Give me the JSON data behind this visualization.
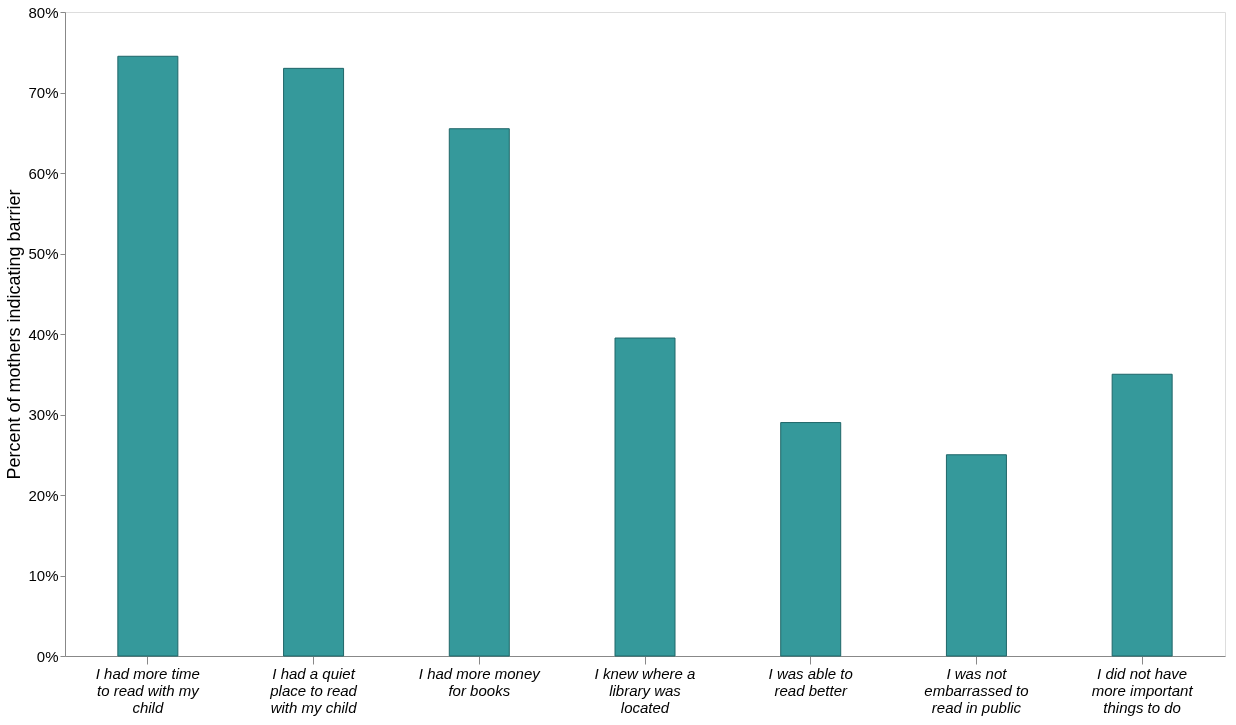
{
  "chart_data": {
    "type": "bar",
    "ylabel": "Percent of mothers indicating barrier",
    "categories": [
      "I had more time to read with my child",
      "I had a quiet place to read with my child",
      "I had more money for books",
      "I knew where a library was located",
      "I was able to read better",
      "I was not embarrassed to read in public",
      "I did not have more important things to do"
    ],
    "values": [
      74.5,
      73,
      65.5,
      39.5,
      29,
      25,
      35
    ],
    "color": "#35999b",
    "ylim": [
      0,
      80
    ],
    "yticks": [
      {
        "value": 0,
        "label": "0%"
      },
      {
        "value": 10,
        "label": "10%"
      },
      {
        "value": 20,
        "label": "20%"
      },
      {
        "value": 30,
        "label": "30%"
      },
      {
        "value": 40,
        "label": "40%"
      },
      {
        "value": 50,
        "label": "50%"
      },
      {
        "value": 60,
        "label": "60%"
      },
      {
        "value": 70,
        "label": "70%"
      },
      {
        "value": 80,
        "label": "80%"
      }
    ],
    "grid": false
  }
}
